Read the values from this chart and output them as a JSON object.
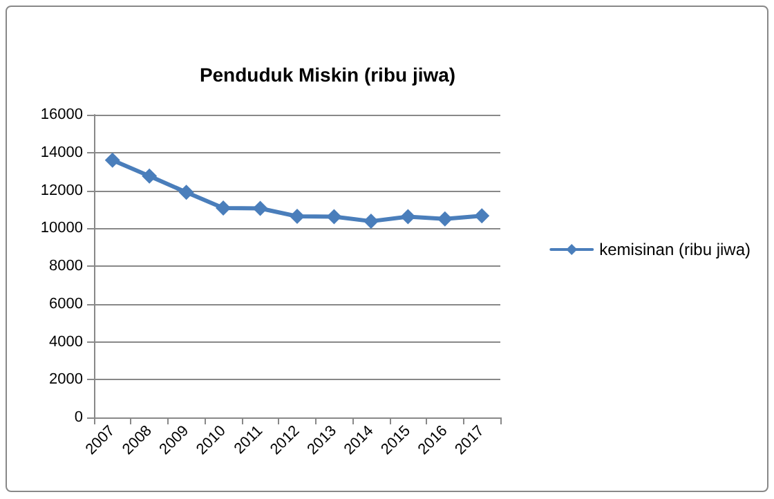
{
  "chart_data": {
    "type": "line",
    "title": "Penduduk Miskin (ribu jiwa)",
    "categories": [
      "2007",
      "2008",
      "2009",
      "2010",
      "2011",
      "2012",
      "2013",
      "2014",
      "2015",
      "2016",
      "2017"
    ],
    "series": [
      {
        "name": "kemisinan (ribu jiwa)",
        "color": "#4a7ebb",
        "values": [
          13600,
          12760,
          11900,
          11070,
          11050,
          10630,
          10610,
          10370,
          10610,
          10490,
          10660
        ]
      }
    ],
    "ylim": [
      0,
      16000
    ],
    "yticks": [
      0,
      2000,
      4000,
      6000,
      8000,
      10000,
      12000,
      14000,
      16000
    ],
    "grid": "y",
    "legend": "right",
    "marker": "diamond"
  }
}
